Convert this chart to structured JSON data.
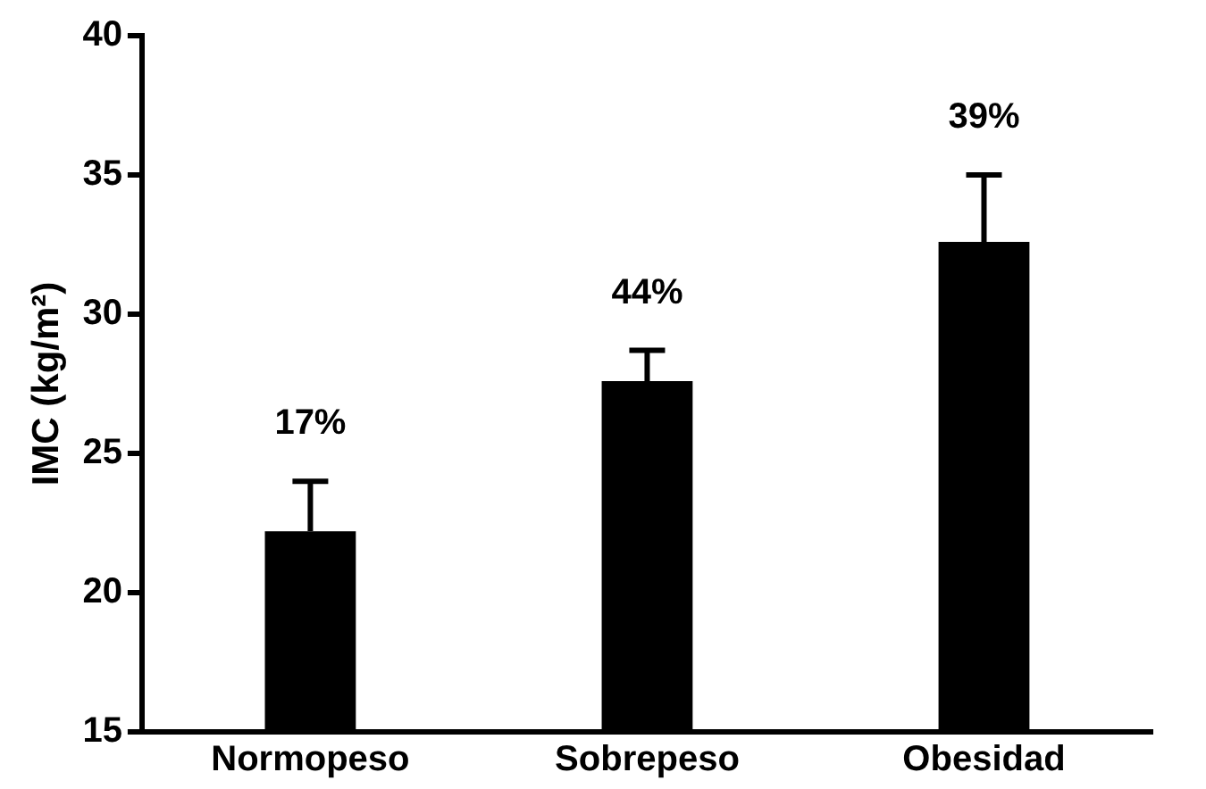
{
  "chart_data": {
    "type": "bar",
    "ylabel": "IMC (kg/m²)",
    "categories": [
      "Normopeso",
      "Sobrepeso",
      "Obesidad"
    ],
    "values": [
      22.2,
      27.6,
      32.6
    ],
    "errors": [
      [
        22.2,
        24.0
      ],
      [
        27.6,
        28.7
      ],
      [
        32.6,
        35.0
      ]
    ],
    "annotations": [
      "17%",
      "44%",
      "39%"
    ],
    "color": "#000000",
    "ylim": [
      15,
      40
    ],
    "yticks": [
      15,
      20,
      25,
      30,
      35,
      40
    ],
    "grid": false,
    "legend": false
  }
}
